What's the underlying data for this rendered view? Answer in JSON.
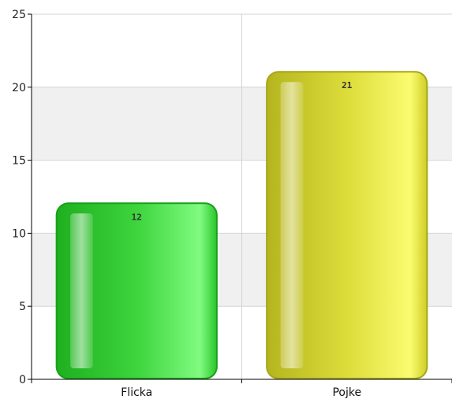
{
  "chart_data": {
    "type": "bar",
    "title": "",
    "xlabel": "",
    "ylabel": "",
    "categories": [
      "Flicka",
      "Pojke"
    ],
    "values": [
      12,
      21
    ],
    "value_labels": [
      "12",
      "21"
    ],
    "ylim": [
      0,
      25
    ],
    "yticks": [
      0,
      5,
      10,
      15,
      20,
      25
    ],
    "ytick_labels": [
      "0",
      "5",
      "10",
      "15",
      "20",
      "25"
    ],
    "grid": "horizontal bands",
    "legend": "none",
    "colors": {
      "bars": [
        "#33cc33",
        "#e6e63c"
      ],
      "band_shade": "#f0f0f0",
      "band_plain": "#ffffff",
      "gridline": "#d4d4d4",
      "axis": "#000000"
    }
  }
}
